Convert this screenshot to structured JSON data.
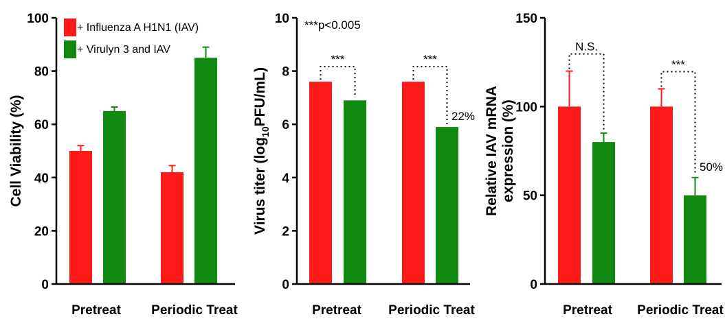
{
  "colors": {
    "iav": "#ff1a1a",
    "virulyn": "#118a11"
  },
  "legend": {
    "iav": "+ Influenza A H1N1 (IAV)",
    "virulyn": "+ Virulyn 3 and IAV"
  },
  "chart_data": [
    {
      "type": "bar",
      "categories": [
        "Pretreat",
        "Periodic Treat"
      ],
      "series": [
        {
          "name": "+ Influenza A H1N1 (IAV)",
          "values": [
            50,
            42
          ],
          "errors": [
            2,
            2.5
          ]
        },
        {
          "name": "+ Virulyn 3 and IAV",
          "values": [
            65,
            85
          ],
          "errors": [
            1.5,
            4
          ]
        }
      ],
      "ylabel": "Cell Viability (%)",
      "ylim": [
        0,
        100
      ],
      "yticks": [
        0,
        20,
        40,
        60,
        80,
        100
      ],
      "legend_position": "top-left"
    },
    {
      "type": "bar",
      "categories": [
        "Pretreat",
        "Periodic Treat"
      ],
      "series": [
        {
          "name": "+ Influenza A H1N1 (IAV)",
          "values": [
            7.6,
            7.6
          ],
          "errors": [
            0,
            0
          ]
        },
        {
          "name": "+ Virulyn 3 and IAV",
          "values": [
            6.9,
            5.9
          ],
          "errors": [
            0,
            0
          ]
        }
      ],
      "ylabel_main": "Virus titer (log",
      "ylabel_sub": "10",
      "ylabel_end": "PFU/mL)",
      "ylim": [
        0,
        10
      ],
      "yticks": [
        0,
        2,
        4,
        6,
        8,
        10
      ],
      "annotations": {
        "pvalue": "***p<0.005",
        "sig_pretreat": "***",
        "sig_periodic": "***",
        "pct": "22%"
      }
    },
    {
      "type": "bar",
      "categories": [
        "Pretreat",
        "Periodic Treat"
      ],
      "series": [
        {
          "name": "+ Influenza A H1N1 (IAV)",
          "values": [
            100,
            100
          ],
          "errors": [
            20,
            10
          ]
        },
        {
          "name": "+ Virulyn 3 and IAV",
          "values": [
            80,
            50
          ],
          "errors": [
            5,
            10
          ]
        }
      ],
      "ylabel_line1": "Relative IAV mRNA",
      "ylabel_line2": "expression (%)",
      "ylim": [
        0,
        150
      ],
      "yticks": [
        0,
        50,
        100,
        150
      ],
      "annotations": {
        "sig_pretreat": "N.S.",
        "sig_periodic": "***",
        "pct": "50%"
      }
    }
  ]
}
